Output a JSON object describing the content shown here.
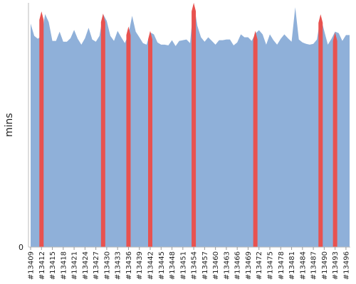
{
  "chart_data": {
    "type": "area",
    "ylabel": "mins",
    "xlabel": "",
    "ylim": [
      0,
      100
    ],
    "y_ticks": [
      {
        "value": 0,
        "label": "0"
      }
    ],
    "grid": false,
    "x_labels": [
      "#13409",
      "#13412",
      "#13415",
      "#13418",
      "#13421",
      "#13424",
      "#13427",
      "#13430",
      "#13433",
      "#13436",
      "#13439",
      "#13442",
      "#13445",
      "#13448",
      "#13451",
      "#13454",
      "#13457",
      "#13460",
      "#13463",
      "#13466",
      "#13469",
      "#13472",
      "#13475",
      "#13478",
      "#13481",
      "#13484",
      "#13487",
      "#13490",
      "#13493",
      "#13496"
    ],
    "x_start": 13409,
    "x_end": 13497,
    "series": [
      {
        "name": "",
        "color": "#8fb0d9",
        "x": [
          13409,
          13410,
          13411,
          13412,
          13413,
          13414,
          13415,
          13416,
          13417,
          13418,
          13419,
          13420,
          13421,
          13422,
          13423,
          13424,
          13425,
          13426,
          13427,
          13428,
          13429,
          13430,
          13431,
          13432,
          13433,
          13434,
          13435,
          13436,
          13437,
          13438,
          13439,
          13440,
          13441,
          13442,
          13443,
          13444,
          13445,
          13446,
          13447,
          13448,
          13449,
          13450,
          13451,
          13452,
          13453,
          13454,
          13455,
          13456,
          13457,
          13458,
          13459,
          13460,
          13461,
          13462,
          13463,
          13464,
          13465,
          13466,
          13467,
          13468,
          13469,
          13470,
          13471,
          13472,
          13473,
          13474,
          13475,
          13476,
          13477,
          13478,
          13479,
          13480,
          13481,
          13482,
          13483,
          13484,
          13485,
          13486,
          13487,
          13488,
          13489,
          13490,
          13491,
          13492,
          13493,
          13494,
          13495,
          13496,
          13497
        ],
        "values": [
          91.5,
          86.5,
          85.3,
          86.5,
          95.4,
          92.1,
          84.4,
          84.4,
          88.2,
          84.1,
          84.1,
          85.5,
          88.9,
          85.3,
          82.9,
          85.5,
          89.8,
          85.0,
          84.1,
          86.5,
          95.4,
          92.6,
          86.5,
          84.4,
          88.5,
          85.9,
          83.5,
          87.1,
          94.7,
          88.2,
          85.9,
          83.5,
          82.9,
          87.9,
          87.1,
          83.8,
          82.9,
          82.9,
          82.6,
          84.7,
          82.3,
          84.4,
          84.7,
          85.0,
          83.5,
          100.0,
          90.6,
          85.9,
          84.1,
          85.9,
          84.4,
          82.9,
          84.7,
          84.7,
          85.0,
          85.0,
          82.6,
          83.8,
          87.1,
          85.9,
          85.9,
          84.4,
          87.4,
          88.8,
          87.1,
          82.9,
          87.1,
          84.7,
          82.9,
          85.3,
          87.1,
          85.5,
          84.1,
          98.2,
          85.0,
          83.8,
          83.2,
          82.9,
          83.2,
          85.0,
          94.4,
          88.5,
          82.9,
          85.3,
          88.2,
          87.6,
          84.4,
          86.8,
          86.8
        ]
      },
      {
        "name": "",
        "color": "#e8524f",
        "type": "spikes",
        "x": [
          13412,
          13429,
          13436,
          13442,
          13454,
          13471,
          13489,
          13493
        ],
        "values": [
          96.5,
          95.6,
          90.3,
          88.5,
          100.0,
          88.5,
          95.3,
          87.9
        ]
      }
    ]
  }
}
